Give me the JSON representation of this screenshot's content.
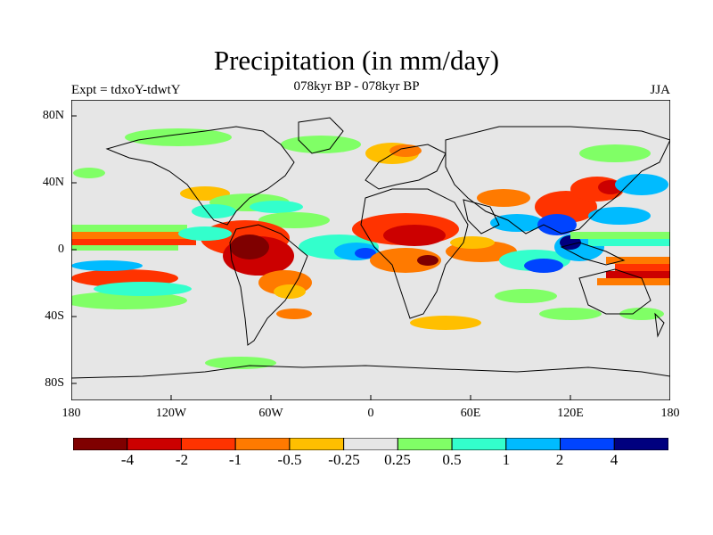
{
  "title": "Precipitation (in mm/day)",
  "experiment": "Expt = tdxoY-tdwtY",
  "period": "078kyr BP - 078kyr BP",
  "season": "JJA",
  "map": {
    "land_color": "#e6e6e6",
    "coast_color": "#000000",
    "y_ticks": [
      "80N",
      "40N",
      "0",
      "40S",
      "80S"
    ],
    "x_ticks": [
      "180",
      "120W",
      "60W",
      "0",
      "60E",
      "120E",
      "180"
    ]
  },
  "colorbar": {
    "colors": [
      "#7f0000",
      "#cc0000",
      "#ff3300",
      "#ff7a00",
      "#ffbf00",
      "#e6e6e6",
      "#80ff66",
      "#33ffcc",
      "#00bbff",
      "#0044ff",
      "#00007f"
    ],
    "labels": [
      "-4",
      "-2",
      "-1",
      "-0.5",
      "-0.25",
      "0.25",
      "0.5",
      "1",
      "2",
      "4"
    ]
  },
  "anomaly_regions": [
    {
      "name": "tropical-pacific-east-negative",
      "color": "#ff3300"
    },
    {
      "name": "amazon-negative",
      "color": "#cc0000"
    },
    {
      "name": "sahel-negative",
      "color": "#cc0000"
    },
    {
      "name": "indian-ocean-positive",
      "color": "#0044ff"
    },
    {
      "name": "west-pacific-positive",
      "color": "#00bbff"
    },
    {
      "name": "north-pacific-positive",
      "color": "#80ff66"
    }
  ]
}
